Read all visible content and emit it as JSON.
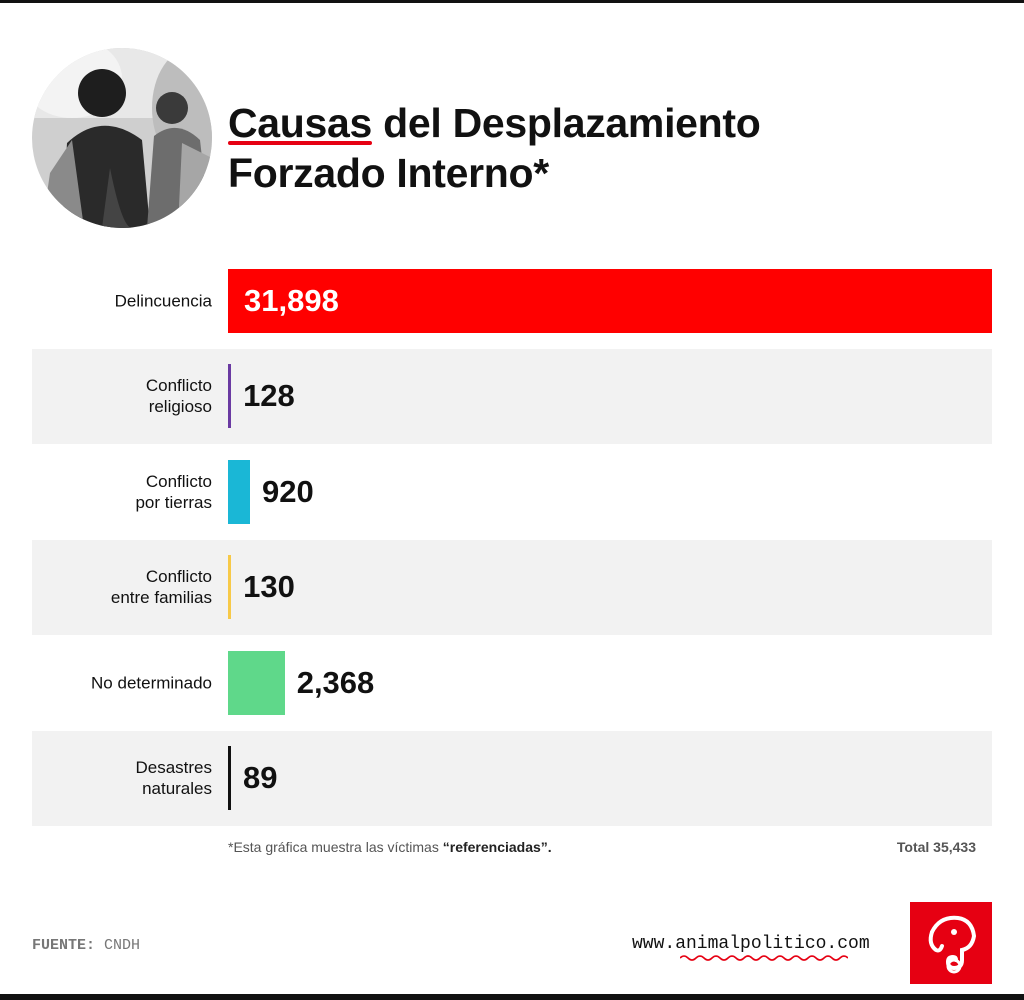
{
  "title": {
    "highlight": "Causas",
    "line1_rest": " del Desplazamiento",
    "line2": "Forzado Interno*"
  },
  "chart_data": {
    "type": "bar",
    "orientation": "horizontal",
    "title": "Causas del Desplazamiento Forzado Interno*",
    "categories": [
      "Delincuencia",
      "Conflicto religioso",
      "Conflicto por tierras",
      "Conflicto entre familias",
      "No determinado",
      "Desastres naturales"
    ],
    "category_labels": [
      "Delincuencia",
      "Conflicto\nreligioso",
      "Conflicto\npor tierras",
      "Conflicto\nentre familias",
      "No determinado",
      "Desastres\nnaturales"
    ],
    "values": [
      31898,
      128,
      920,
      130,
      2368,
      89
    ],
    "value_labels": [
      "31,898",
      "128",
      "920",
      "130",
      "2,368",
      "89"
    ],
    "colors": [
      "#ff0000",
      "#6a3aa2",
      "#1ab7d6",
      "#f7c948",
      "#5fd88a",
      "#111111"
    ],
    "xlim": [
      0,
      31898
    ]
  },
  "footnote": {
    "prefix": "*Esta gráfica muestra las víctimas ",
    "emphasis": "“referenciadas”."
  },
  "total": "Total 35,433",
  "source": {
    "label": "FUENTE:",
    "value": "CNDH"
  },
  "website": "www.animalpolitico.com",
  "colors": {
    "accent": "#e60012",
    "row_band": "#f2f2f2"
  },
  "icons": {
    "photo": "people-photo",
    "logo": "elephant-logo-icon"
  }
}
